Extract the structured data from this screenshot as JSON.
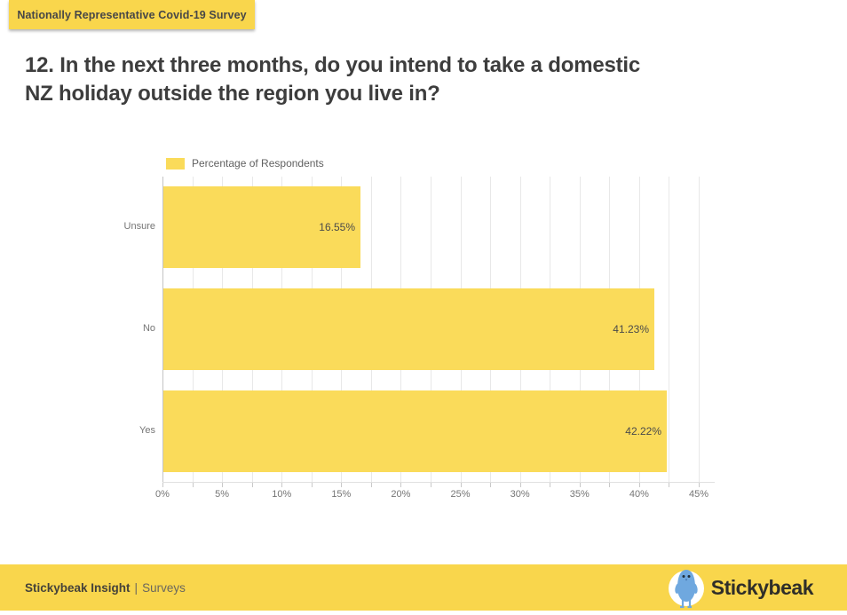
{
  "banner": {
    "label": "Nationally Representative Covid-19 Survey"
  },
  "title": {
    "line1": "12. In the next three months, do you intend to take a domestic",
    "line2": "NZ holiday outside the region you live in?"
  },
  "legend": {
    "label": "Percentage of Respondents"
  },
  "chart_data": {
    "type": "bar",
    "orientation": "horizontal",
    "title": "12. In the next three months, do you intend to take a domestic NZ holiday outside the region you live in?",
    "series_name": "Percentage of Respondents",
    "categories": [
      "Unsure",
      "No",
      "Yes"
    ],
    "values": [
      16.55,
      41.23,
      42.22
    ],
    "value_labels": [
      "16.55%",
      "41.23%",
      "42.22%"
    ],
    "xlim": [
      0,
      45
    ],
    "x_major_tick_labels": [
      "0%",
      "5%",
      "10%",
      "15%",
      "20%",
      "25%",
      "30%",
      "35%",
      "40%",
      "45%"
    ],
    "x_major_step": 5,
    "x_minor_step": 2.5,
    "grid": true,
    "legend_position": "top-left",
    "bar_color": "#FADB5A"
  },
  "footer": {
    "brand_bold": "Stickybeak Insight",
    "divider": "|",
    "section": "Surveys",
    "logo_text": "Stickybeak"
  },
  "colors": {
    "accent_yellow": "#F9D64C",
    "bar_yellow": "#FADB5A",
    "bird_blue": "#6FA8DF",
    "title_text": "#3d3d3d",
    "axis_text": "#757575"
  }
}
